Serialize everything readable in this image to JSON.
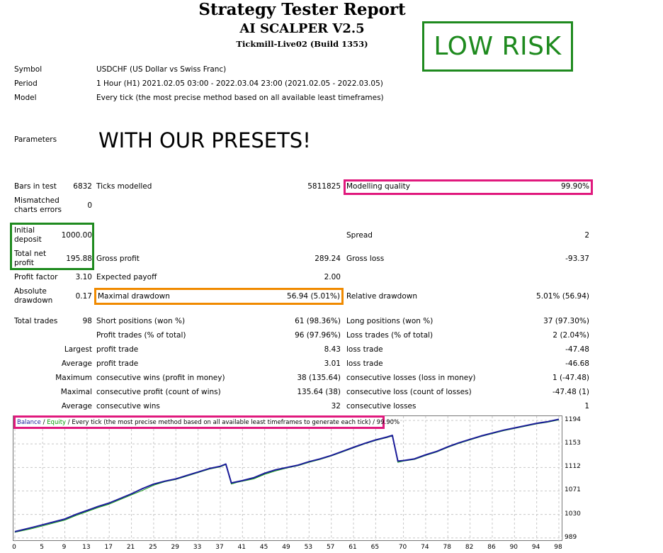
{
  "header": {
    "title": "Strategy Tester Report",
    "ea_name": "AI SCALPER V2.5",
    "server": "Tickmill-Live02 (Build 1353)",
    "risk_label": "LOW RISK"
  },
  "info": {
    "symbol_label": "Symbol",
    "symbol_value": "USDCHF (US Dollar vs Swiss Franc)",
    "period_label": "Period",
    "period_value": "1 Hour (H1) 2021.02.05 03:00 - 2022.03.04 23:00 (2021.02.05 - 2022.03.05)",
    "model_label": "Model",
    "model_value": "Every tick (the most precise method based on all available least timeframes)",
    "parameters_label": "Parameters",
    "parameters_value": "WITH OUR PRESETS!"
  },
  "stats": {
    "bars_label": "Bars in test",
    "bars_value": "6832",
    "ticks_label": "Ticks modelled",
    "ticks_value": "5811825",
    "quality_label": "Modelling quality",
    "quality_value": "99.90%",
    "mismatch_label_1": "Mismatched",
    "mismatch_label_2": "charts errors",
    "mismatch_value": "0",
    "deposit_label_1": "Initial",
    "deposit_label_2": "deposit",
    "deposit_value": "1000.00",
    "spread_label": "Spread",
    "spread_value": "2",
    "netprofit_label_1": "Total net",
    "netprofit_label_2": "profit",
    "netprofit_value": "195.88",
    "grossprofit_label": "Gross profit",
    "grossprofit_value": "289.24",
    "grossloss_label": "Gross loss",
    "grossloss_value": "-93.37",
    "pf_label": "Profit factor",
    "pf_value": "3.10",
    "payoff_label": "Expected payoff",
    "payoff_value": "2.00",
    "absdd_label_1": "Absolute",
    "absdd_label_2": "drawdown",
    "absdd_value": "0.17",
    "maxdd_label": "Maximal drawdown",
    "maxdd_value": "56.94 (5.01%)",
    "reldd_label": "Relative drawdown",
    "reldd_value": "5.01% (56.94)",
    "trades_label": "Total trades",
    "trades_value": "98",
    "short_label": "Short positions (won %)",
    "short_value": "61 (98.36%)",
    "long_label": "Long positions (won %)",
    "long_value": "37 (97.30%)",
    "ptrades_label": "Profit trades (% of total)",
    "ptrades_value": "96 (97.96%)",
    "ltrades_label": "Loss trades (% of total)",
    "ltrades_value": "2 (2.04%)",
    "largest_label": "Largest",
    "largest_profit_label": "profit trade",
    "largest_profit_value": "8.43",
    "largest_loss_label": "loss trade",
    "largest_loss_value": "-47.48",
    "average_label": "Average",
    "average_profit_label": "profit trade",
    "average_profit_value": "3.01",
    "average_loss_label": "loss trade",
    "average_loss_value": "-46.68",
    "maximum_label": "Maximum",
    "max_wins_label": "consecutive wins (profit in money)",
    "max_wins_value": "38 (135.64)",
    "max_losses_label": "consecutive losses (loss in money)",
    "max_losses_value": "1 (-47.48)",
    "maximal_label": "Maximal",
    "mxl_profit_label": "consecutive profit (count of wins)",
    "mxl_profit_value": "135.64 (38)",
    "mxl_loss_label": "consecutive loss (count of losses)",
    "mxl_loss_value": "-47.48 (1)",
    "average2_label": "Average",
    "avg_wins_label": "consecutive wins",
    "avg_wins_value": "32",
    "avg_losses_label": "consecutive losses",
    "avg_losses_value": "1"
  },
  "chart_data": {
    "type": "line",
    "legend": {
      "balance": "Balance",
      "sep1": " / ",
      "equity": "Equity",
      "sep2": " / ",
      "description": "Every tick (the most precise method based on all available least timeframes to generate each tick)",
      "sep3": " / ",
      "quality": "99.90%"
    },
    "colors": {
      "balance": "#1b1b9a",
      "equity": "#0b9a0b"
    },
    "y_ticks": [
      "1194",
      "1153",
      "1112",
      "1071",
      "1030",
      "989"
    ],
    "y_tick_values": [
      1194,
      1153,
      1112,
      1071,
      1030,
      989
    ],
    "x_ticks": [
      "0",
      "5",
      "9",
      "13",
      "17",
      "21",
      "25",
      "29",
      "33",
      "37",
      "41",
      "45",
      "49",
      "53",
      "57",
      "61",
      "65",
      "70",
      "74",
      "78",
      "82",
      "86",
      "90",
      "94",
      "98"
    ],
    "x_tick_values": [
      0,
      5,
      9,
      13,
      17,
      21,
      25,
      29,
      33,
      37,
      41,
      45,
      49,
      53,
      57,
      61,
      65,
      70,
      74,
      78,
      82,
      86,
      90,
      94,
      98
    ],
    "xlim": [
      0,
      98
    ],
    "ylim": [
      985,
      1199
    ],
    "grid": true,
    "series": [
      {
        "name": "Balance",
        "x": [
          0,
          3,
          5,
          7,
          9,
          11,
          13,
          15,
          17,
          19,
          21,
          23,
          25,
          27,
          29,
          31,
          33,
          35,
          37,
          38,
          39,
          40,
          41,
          43,
          45,
          47,
          49,
          51,
          53,
          55,
          57,
          59,
          61,
          63,
          65,
          67,
          68,
          69,
          70,
          72,
          74,
          76,
          78,
          80,
          82,
          84,
          86,
          88,
          90,
          92,
          94,
          96,
          98
        ],
        "values": [
          1000,
          1007,
          1012,
          1017,
          1022,
          1030,
          1037,
          1044,
          1050,
          1058,
          1066,
          1075,
          1083,
          1088,
          1092,
          1098,
          1104,
          1110,
          1114,
          1118,
          1085,
          1087,
          1089,
          1094,
          1102,
          1108,
          1112,
          1116,
          1122,
          1127,
          1133,
          1140,
          1147,
          1154,
          1160,
          1165,
          1168,
          1123,
          1124,
          1127,
          1134,
          1140,
          1148,
          1155,
          1161,
          1167,
          1172,
          1177,
          1181,
          1185,
          1189,
          1192,
          1196
        ]
      },
      {
        "name": "Equity",
        "x": [
          0,
          3,
          5,
          7,
          9,
          11,
          13,
          15,
          17,
          19,
          21,
          23,
          25,
          27,
          29,
          31,
          33,
          35,
          37,
          38,
          39,
          40,
          41,
          43,
          45,
          47,
          49,
          51,
          53,
          55,
          57,
          59,
          61,
          63,
          65,
          67,
          68,
          69,
          70,
          72,
          74,
          76,
          78,
          80,
          82,
          84,
          86,
          88,
          90,
          92,
          94,
          96,
          98
        ],
        "values": [
          999,
          1005,
          1010,
          1015,
          1020,
          1028,
          1035,
          1042,
          1048,
          1056,
          1064,
          1072,
          1081,
          1087,
          1091,
          1097,
          1103,
          1109,
          1113,
          1117,
          1083,
          1086,
          1088,
          1092,
          1100,
          1106,
          1111,
          1115,
          1121,
          1126,
          1132,
          1139,
          1146,
          1153,
          1159,
          1164,
          1167,
          1121,
          1123,
          1126,
          1133,
          1139,
          1147,
          1154,
          1160,
          1166,
          1171,
          1176,
          1180,
          1184,
          1188,
          1191,
          1195
        ]
      }
    ]
  }
}
